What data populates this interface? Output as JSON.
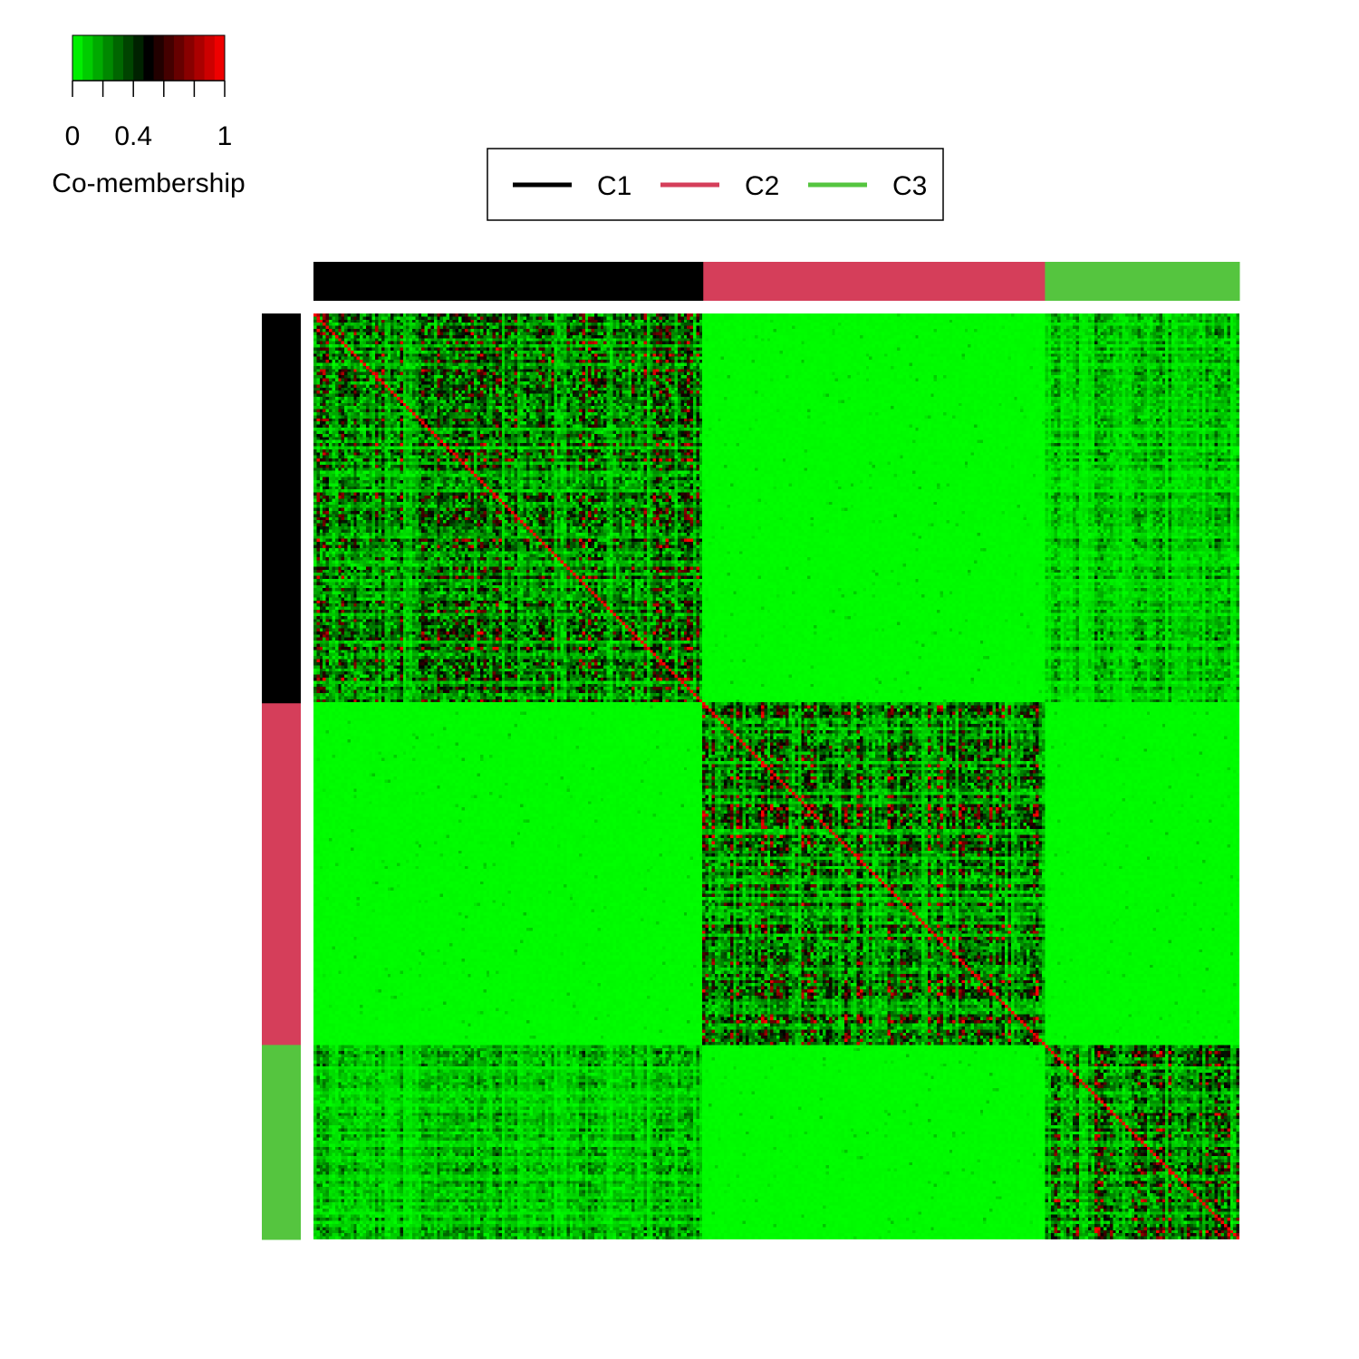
{
  "chart_data": {
    "type": "heatmap",
    "title": "",
    "xlabel": "",
    "ylabel": "",
    "colorbar": {
      "title": "Co-membership",
      "range": [
        0,
        1
      ],
      "tick_values": [
        0,
        0.4,
        1
      ],
      "tick_labels": [
        "0",
        "0.4",
        "1"
      ],
      "colors": [
        "#00ff00",
        "#000000",
        "#ff0000"
      ],
      "segments": 15
    },
    "legend": {
      "placement": "top-center",
      "entries": [
        {
          "label": "C1",
          "color": "#000000"
        },
        {
          "label": "C2",
          "color": "#d53e5a"
        },
        {
          "label": "C3",
          "color": "#55c53f"
        }
      ]
    },
    "clusters": [
      {
        "name": "C1",
        "color": "#000000",
        "fraction": 0.421
      },
      {
        "name": "C2",
        "color": "#d53e5a",
        "fraction": 0.369
      },
      {
        "name": "C3",
        "color": "#55c53f",
        "fraction": 0.21
      }
    ],
    "n_samples": 300,
    "diagonal_value": 1,
    "block_mean_comembership": [
      [
        0.3,
        0.01,
        0.12
      ],
      [
        0.01,
        0.32,
        0.01
      ],
      [
        0.12,
        0.01,
        0.3
      ]
    ]
  }
}
